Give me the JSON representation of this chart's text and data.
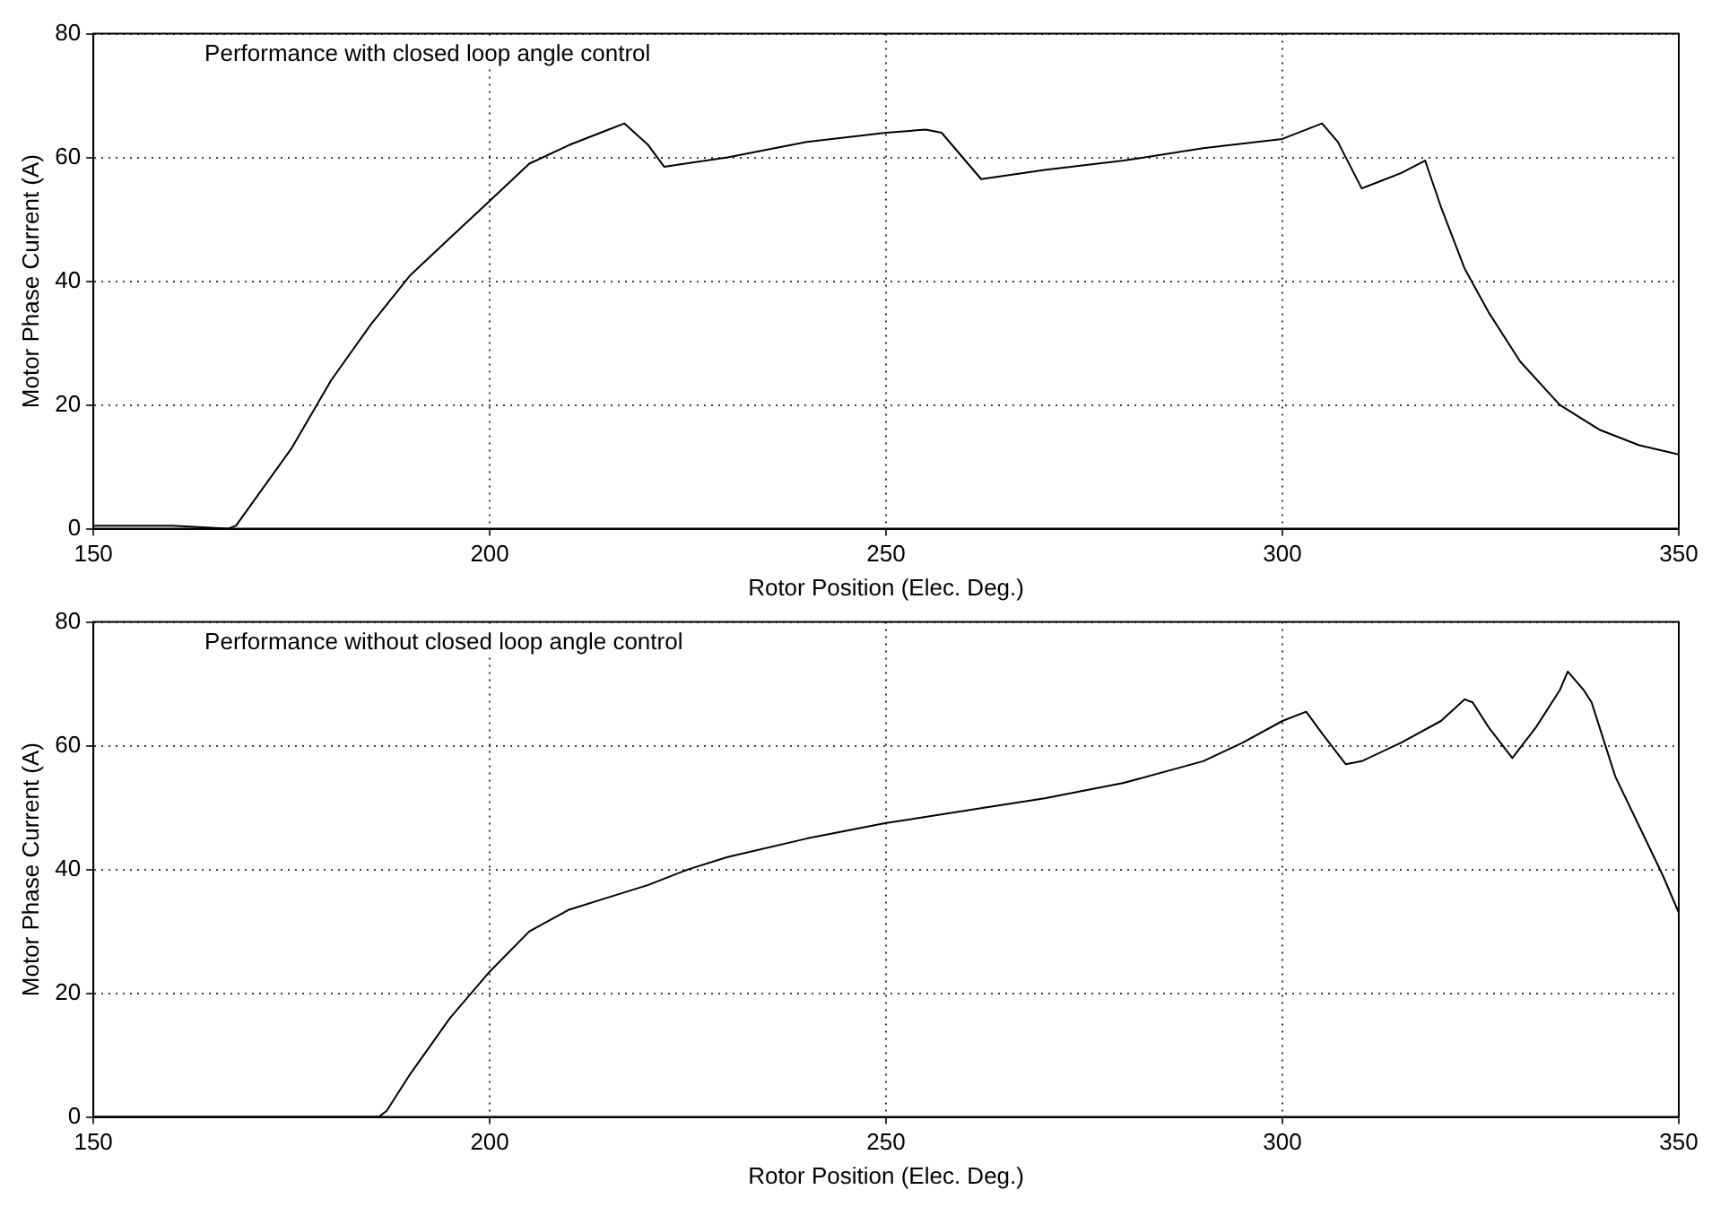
{
  "chart_data": [
    {
      "type": "line",
      "xlabel": "Rotor Position (Elec. Deg.)",
      "ylabel": "Motor Phase Current (A)",
      "annotations": [
        "Performance with closed loop angle control"
      ],
      "xlim": [
        150,
        350
      ],
      "xticks": [
        150,
        200,
        250,
        300,
        350
      ],
      "ylim": [
        0,
        80
      ],
      "yticks": [
        0,
        20,
        40,
        60,
        80
      ],
      "grid": true,
      "legend": false,
      "marker": "none",
      "line_style": "solid",
      "series": [
        {
          "color": "#000000",
          "x": [
            150,
            160,
            167,
            168,
            175,
            180,
            185,
            190,
            195,
            200,
            205,
            210,
            215,
            217,
            220,
            222,
            230,
            240,
            250,
            255,
            257,
            262,
            270,
            280,
            290,
            300,
            305,
            307,
            310,
            312,
            315,
            318,
            320,
            323,
            326,
            330,
            335,
            340,
            345,
            350
          ],
          "values": [
            0.5,
            0.5,
            0,
            0.5,
            13,
            24,
            33,
            41,
            47,
            53,
            59,
            62,
            64.5,
            65.5,
            62,
            58.5,
            60,
            62.5,
            64,
            64.5,
            64,
            56.5,
            58,
            59.5,
            61.5,
            63,
            65.5,
            62.5,
            55,
            56,
            57.5,
            59.5,
            52,
            42,
            35,
            27,
            20,
            16,
            13.5,
            12
          ]
        }
      ]
    },
    {
      "type": "line",
      "xlabel": "Rotor Position (Elec. Deg.)",
      "ylabel": "Motor Phase Current (A)",
      "annotations": [
        "Performance without closed loop angle control"
      ],
      "xlim": [
        150,
        350
      ],
      "xticks": [
        150,
        200,
        250,
        300,
        350
      ],
      "ylim": [
        0,
        80
      ],
      "yticks": [
        0,
        20,
        40,
        60,
        80
      ],
      "grid": true,
      "legend": false,
      "marker": "none",
      "line_style": "solid",
      "series": [
        {
          "color": "#000000",
          "x": [
            150,
            170,
            186,
            187,
            190,
            195,
            200,
            205,
            210,
            215,
            220,
            225,
            230,
            240,
            250,
            260,
            270,
            280,
            290,
            295,
            300,
            303,
            305,
            308,
            310,
            315,
            320,
            323,
            324,
            326,
            329,
            332,
            335,
            336,
            338,
            339,
            342,
            345,
            348,
            350
          ],
          "values": [
            0,
            0,
            0,
            1,
            7,
            16,
            23.5,
            30,
            33.5,
            35.5,
            37.5,
            40,
            42,
            45,
            47.5,
            49.5,
            51.5,
            54,
            57.5,
            60.5,
            64,
            65.5,
            62,
            57,
            57.5,
            60.5,
            64,
            67.5,
            67,
            63,
            58,
            63,
            69,
            72,
            69,
            67,
            55,
            47,
            39,
            33
          ]
        }
      ]
    }
  ]
}
